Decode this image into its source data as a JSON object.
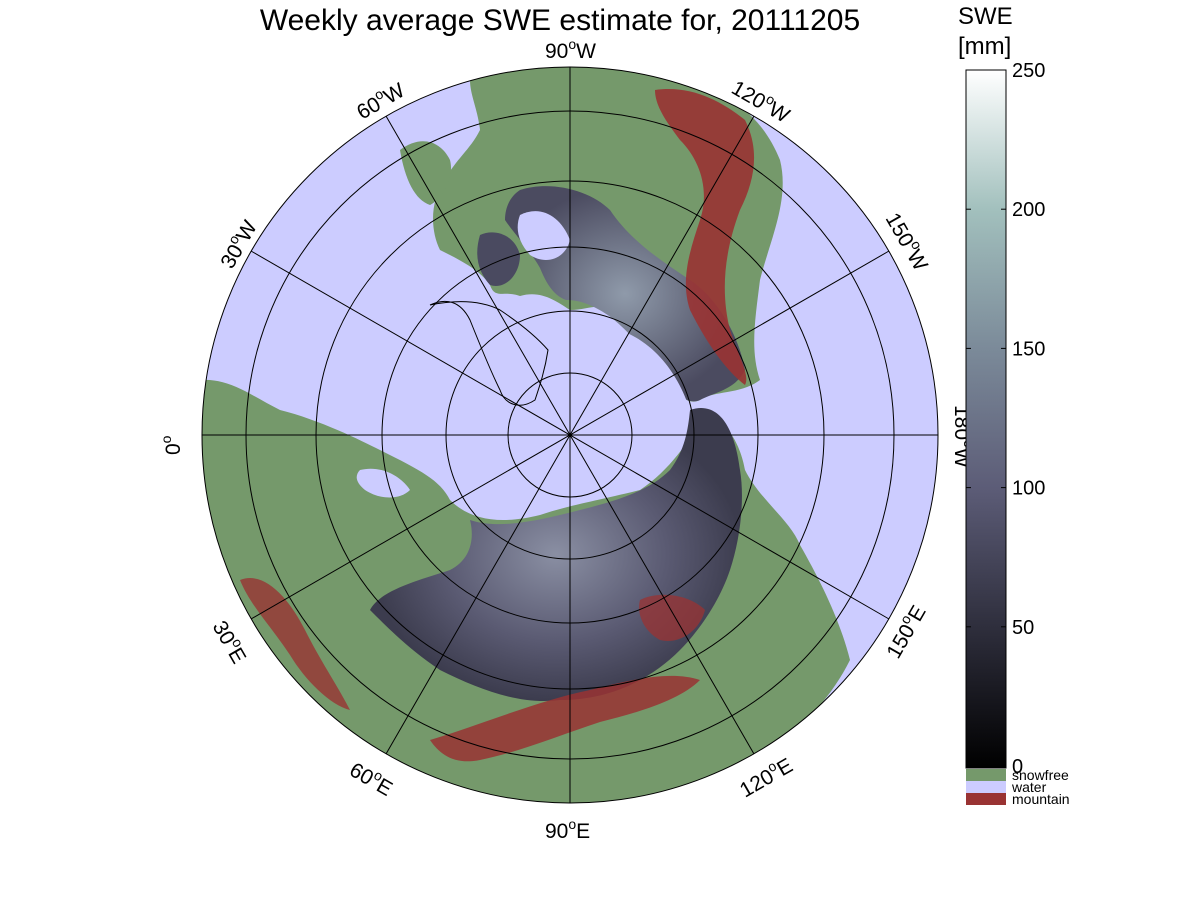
{
  "title": "Weekly average SWE estimate for, 20111205",
  "colorbar": {
    "title_line1": "SWE",
    "title_line2": "[mm]",
    "ticks": [
      "0",
      "50",
      "100",
      "150",
      "200",
      "250"
    ],
    "range": [
      0,
      250
    ],
    "gradient_colors": [
      "#000000",
      "#2e2e3c",
      "#5c5c77",
      "#7b8a99",
      "#a2c0bd",
      "#ffffff"
    ]
  },
  "legend": [
    {
      "label": "snowfree",
      "color": "#75996b"
    },
    {
      "label": "water",
      "color": "#ccccff"
    },
    {
      "label": "mountain",
      "color": "#993333"
    }
  ],
  "map": {
    "projection": "north polar stereographic",
    "ocean_color": "#ccccff",
    "land_color": "#75996b",
    "snow_color": "#55556d",
    "mountain_color": "#993333",
    "latitude_circles_deg": [
      30,
      40,
      50,
      60,
      70,
      80
    ],
    "longitude_labels": [
      {
        "id": "0",
        "text": "0",
        "sup": "o",
        "suffix": ""
      },
      {
        "id": "30W",
        "text": "30",
        "sup": "o",
        "suffix": "W"
      },
      {
        "id": "60W",
        "text": "60",
        "sup": "o",
        "suffix": "W"
      },
      {
        "id": "90W",
        "text": "90",
        "sup": "o",
        "suffix": "W"
      },
      {
        "id": "120W",
        "text": "120",
        "sup": "o",
        "suffix": "W"
      },
      {
        "id": "150W",
        "text": "150",
        "sup": "o",
        "suffix": "W"
      },
      {
        "id": "180W",
        "text": "180",
        "sup": "o",
        "suffix": "W"
      },
      {
        "id": "150E",
        "text": "150",
        "sup": "o",
        "suffix": "E"
      },
      {
        "id": "120E",
        "text": "120",
        "sup": "o",
        "suffix": "E"
      },
      {
        "id": "90E",
        "text": "90",
        "sup": "o",
        "suffix": "E"
      },
      {
        "id": "60E",
        "text": "60",
        "sup": "o",
        "suffix": "E"
      },
      {
        "id": "30E",
        "text": "30",
        "sup": "o",
        "suffix": "E"
      }
    ]
  }
}
